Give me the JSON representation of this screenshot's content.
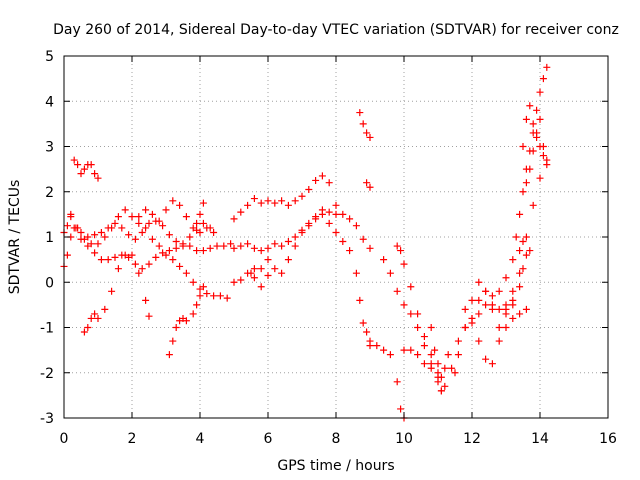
{
  "chart_data": {
    "type": "scatter",
    "title": "Day 260 of 2014, Sidereal Day-to-day VTEC variation (SDTVAR) for receiver conz",
    "xlabel": "GPS time / hours",
    "ylabel": "SDTVAR / TECUs",
    "xlim": [
      0,
      16
    ],
    "ylim": [
      -3,
      5
    ],
    "xticks": [
      "0",
      "2",
      "4",
      "6",
      "8",
      "10",
      "12",
      "14",
      "16"
    ],
    "yticks": [
      "-3",
      "-2",
      "-1",
      "0",
      "1",
      "2",
      "3",
      "4",
      "5"
    ],
    "grid": true,
    "marker": "+",
    "color": "#ff0000",
    "series": [
      {
        "x": [
          0.0,
          0.1,
          0.2,
          0.35,
          0.5,
          0.7,
          0.9,
          1.1,
          1.3,
          1.5,
          1.7,
          1.9,
          2.1,
          2.3,
          2.5,
          2.7,
          2.9,
          3.1,
          3.3,
          3.5,
          3.7,
          3.9,
          4.1,
          4.3
        ],
        "y": [
          1.1,
          1.25,
          1.45,
          1.2,
          0.95,
          0.8,
          0.65,
          0.5,
          0.5,
          0.55,
          0.6,
          0.55,
          0.4,
          0.3,
          0.4,
          0.55,
          0.65,
          0.7,
          0.75,
          0.85,
          1.0,
          1.15,
          1.3,
          1.2
        ]
      },
      {
        "x": [
          0.0,
          0.1,
          0.2,
          0.3,
          0.5,
          0.7,
          0.9,
          1.1,
          1.3,
          1.5,
          1.7,
          1.9,
          2.1,
          2.3,
          2.5,
          2.7,
          2.9,
          3.1,
          3.3,
          3.5,
          3.7,
          3.9,
          4.1,
          4.3,
          4.5,
          4.7,
          4.9
        ],
        "y": [
          0.35,
          0.6,
          1.0,
          1.2,
          1.1,
          1.0,
          1.05,
          1.1,
          1.2,
          1.3,
          1.2,
          1.05,
          0.95,
          1.1,
          1.3,
          1.35,
          1.25,
          1.05,
          0.9,
          0.8,
          0.8,
          0.7,
          0.7,
          0.75,
          0.8,
          0.8,
          0.85
        ]
      },
      {
        "x": [
          0.2,
          0.4,
          0.6,
          0.8,
          1.0,
          1.2,
          1.4,
          1.6,
          1.8,
          2.0,
          2.2,
          2.4,
          2.6,
          2.8,
          3.0,
          3.2,
          3.4,
          3.6,
          3.8,
          4.0,
          4.2,
          4.4,
          4.6,
          4.8
        ],
        "y": [
          1.5,
          1.2,
          0.95,
          0.85,
          0.85,
          1.0,
          1.2,
          1.45,
          1.6,
          1.45,
          1.3,
          1.2,
          0.95,
          0.8,
          0.6,
          0.5,
          0.35,
          0.2,
          0.0,
          -0.15,
          -0.25,
          -0.3,
          -0.3,
          -0.35
        ]
      },
      {
        "x": [
          0.3,
          0.4,
          0.5,
          0.6,
          0.7,
          0.8,
          0.9,
          1.0
        ],
        "y": [
          2.7,
          2.6,
          2.4,
          2.5,
          2.6,
          2.6,
          2.4,
          2.3
        ]
      },
      {
        "x": [
          0.6,
          0.7,
          0.8,
          0.9,
          1.0,
          1.2,
          1.4,
          1.6,
          1.8,
          2.0,
          2.2,
          2.4,
          2.5
        ],
        "y": [
          -1.1,
          -1.0,
          -0.8,
          -0.7,
          -0.8,
          -0.6,
          -0.2,
          0.3,
          0.6,
          0.6,
          0.2,
          -0.4,
          -0.75
        ]
      },
      {
        "x": [
          2.2,
          2.4,
          2.6,
          2.8,
          3.0,
          3.2,
          3.4,
          3.6,
          3.8,
          4.0,
          4.2,
          4.4
        ],
        "y": [
          1.45,
          1.6,
          1.5,
          1.35,
          1.6,
          1.8,
          1.7,
          1.45,
          1.2,
          1.1,
          1.2,
          1.1
        ]
      },
      {
        "x": [
          3.1,
          3.2,
          3.3,
          3.4,
          3.5,
          3.6,
          3.8,
          3.9,
          4.0,
          4.1
        ],
        "y": [
          -1.6,
          -1.3,
          -1.0,
          -0.85,
          -0.8,
          -0.85,
          -0.7,
          -0.5,
          -0.3,
          -0.1
        ]
      },
      {
        "x": [
          3.9,
          4.0,
          4.1
        ],
        "y": [
          1.3,
          1.5,
          1.75
        ]
      },
      {
        "x": [
          5.0,
          5.2,
          5.4,
          5.6,
          5.8,
          6.0,
          6.2,
          6.4,
          6.6,
          6.8,
          7.0,
          7.2,
          7.4,
          7.6,
          7.8,
          8.0
        ],
        "y": [
          1.4,
          1.55,
          1.7,
          1.85,
          1.75,
          1.8,
          1.75,
          1.8,
          1.7,
          1.8,
          1.9,
          2.05,
          2.25,
          2.35,
          2.2,
          1.7
        ]
      },
      {
        "x": [
          5.0,
          5.2,
          5.4,
          5.6,
          5.8,
          6.0,
          6.2,
          6.4,
          6.6,
          6.8,
          7.0,
          7.2,
          7.4,
          7.6,
          7.8,
          8.0,
          8.2,
          8.4,
          8.6,
          8.7,
          8.8,
          8.9,
          9.0
        ],
        "y": [
          0.75,
          0.8,
          0.85,
          0.75,
          0.7,
          0.75,
          0.85,
          0.8,
          0.9,
          1.0,
          1.15,
          1.3,
          1.45,
          1.5,
          1.3,
          1.1,
          0.9,
          0.7,
          0.2,
          -0.4,
          -0.9,
          -1.1,
          -1.3
        ]
      },
      {
        "x": [
          5.0,
          5.2,
          5.4,
          5.6,
          5.8,
          6.0,
          6.2,
          6.4,
          6.6,
          6.8,
          7.0,
          7.2,
          7.4,
          7.6,
          7.8,
          8.0,
          8.2,
          8.4,
          8.6,
          8.8,
          9.0
        ],
        "y": [
          0.0,
          0.05,
          0.2,
          0.3,
          -0.1,
          0.15,
          0.3,
          0.2,
          0.5,
          0.8,
          1.1,
          1.25,
          1.4,
          1.6,
          1.55,
          1.5,
          1.5,
          1.4,
          1.25,
          0.95,
          0.75
        ]
      },
      {
        "x": [
          5.5,
          5.6,
          5.8,
          6.0
        ],
        "y": [
          0.2,
          0.1,
          0.3,
          0.5
        ]
      },
      {
        "x": [
          8.7,
          8.8,
          8.9,
          9.0
        ],
        "y": [
          3.75,
          3.5,
          3.3,
          3.2
        ]
      },
      {
        "x": [
          8.9,
          9.0
        ],
        "y": [
          2.2,
          2.1
        ]
      },
      {
        "x": [
          9.4,
          9.6,
          9.8,
          10.0,
          10.2,
          10.4,
          10.6,
          10.8,
          11.0,
          11.1,
          11.2,
          11.3
        ],
        "y": [
          0.5,
          0.2,
          -0.2,
          -0.5,
          -0.7,
          -1.0,
          -1.4,
          -1.8,
          -2.0,
          -2.1,
          -1.9,
          -1.6
        ]
      },
      {
        "x": [
          9.8,
          9.9,
          10.0,
          10.2,
          10.4,
          10.6,
          10.8,
          11.0,
          11.1
        ],
        "y": [
          0.8,
          0.7,
          0.4,
          -0.1,
          -0.7,
          -1.2,
          -1.6,
          -2.2,
          -2.4
        ]
      },
      {
        "x": [
          9.0,
          9.2,
          9.4,
          9.6,
          9.8,
          9.9,
          10.0
        ],
        "y": [
          -1.4,
          -1.4,
          -1.5,
          -1.6,
          -2.2,
          -2.8,
          -3.0
        ]
      },
      {
        "x": [
          10.0,
          10.2,
          10.4,
          10.6,
          10.8,
          11.0
        ],
        "y": [
          -1.5,
          -1.5,
          -1.6,
          -1.8,
          -1.9,
          -1.8
        ]
      },
      {
        "x": [
          10.8,
          10.9,
          11.0,
          11.1,
          11.2,
          11.4,
          11.6,
          11.8,
          12.0,
          12.2,
          12.4,
          12.6,
          12.8,
          13.0,
          13.2,
          13.4,
          13.5
        ],
        "y": [
          -1.0,
          -1.5,
          -2.1,
          -2.4,
          -2.3,
          -1.9,
          -1.3,
          -1.0,
          -0.8,
          -0.7,
          -0.5,
          -0.3,
          -0.2,
          0.1,
          0.5,
          0.7,
          0.9
        ]
      },
      {
        "x": [
          11.5,
          11.6,
          11.8,
          12.0,
          12.2,
          12.4,
          12.6,
          12.8,
          13.0,
          13.2,
          13.4,
          13.6,
          13.8,
          14.0
        ],
        "y": [
          -2.0,
          -1.6,
          -1.0,
          -0.8,
          -0.4,
          -0.2,
          -0.5,
          -0.6,
          -0.5,
          -0.2,
          0.2,
          1.0,
          1.7,
          2.3
        ]
      },
      {
        "x": [
          11.8,
          12.0,
          12.2,
          12.4,
          12.6,
          12.8,
          13.0,
          13.2
        ],
        "y": [
          -0.6,
          -0.4,
          0.0,
          -0.2,
          -0.6,
          -1.3,
          -1.0,
          -0.4
        ]
      },
      {
        "x": [
          12.0,
          12.2,
          12.4,
          12.6,
          12.8,
          13.0,
          13.2,
          13.4,
          13.6
        ],
        "y": [
          -0.9,
          -1.3,
          -1.7,
          -1.8,
          -1.0,
          -0.6,
          -0.8,
          -0.7,
          -0.6
        ]
      },
      {
        "x": [
          13.0,
          13.2,
          13.4,
          13.5,
          13.6,
          13.7
        ],
        "y": [
          -0.7,
          -0.5,
          -0.1,
          0.3,
          0.6,
          0.7
        ]
      },
      {
        "x": [
          13.3,
          13.4,
          13.5,
          13.6,
          13.7,
          13.8,
          13.9,
          14.0,
          14.1,
          14.2
        ],
        "y": [
          1.0,
          1.5,
          2.0,
          2.5,
          2.9,
          3.3,
          3.8,
          4.2,
          4.5,
          4.75
        ]
      },
      {
        "x": [
          13.5,
          13.6,
          13.7,
          13.8,
          13.9,
          14.0,
          14.1,
          14.2
        ],
        "y": [
          3.0,
          3.6,
          3.9,
          3.5,
          3.2,
          3.0,
          2.8,
          2.7
        ]
      },
      {
        "x": [
          13.6,
          13.7,
          13.8,
          13.9,
          14.0,
          14.1,
          14.2
        ],
        "y": [
          2.2,
          2.5,
          2.9,
          3.3,
          3.6,
          3.0,
          2.6
        ]
      }
    ]
  }
}
